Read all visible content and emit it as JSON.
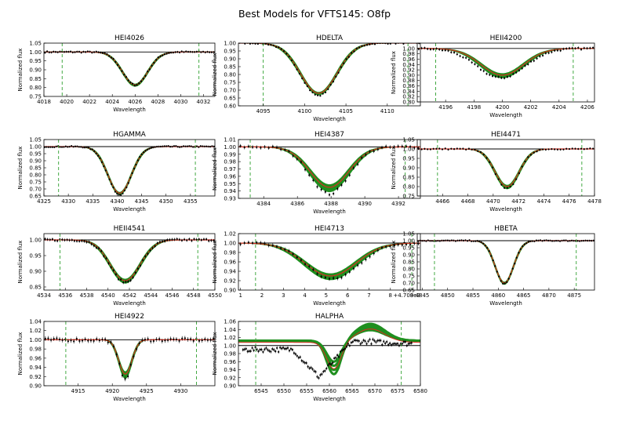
{
  "figure_title": "Best Models for VFTS145: O8fp",
  "colors": {
    "model_band": "#1f8f1f",
    "best_fit": "#d62d20",
    "data_points": "#000000",
    "continuum": "#000000",
    "window_marker": "#2fa02f"
  },
  "chart_data": [
    {
      "type": "line",
      "title": "HEI4026",
      "xlabel": "Wavelength",
      "ylabel": "Normalized flux",
      "xlim": [
        4018,
        4033
      ],
      "ylim": [
        0.75,
        1.05
      ],
      "xticks": [
        "4018",
        "4020",
        "4022",
        "4024",
        "4026",
        "4028",
        "4030",
        "4032"
      ],
      "yticks": [
        "0.75",
        "0.80",
        "0.85",
        "0.90",
        "0.95",
        "1.00",
        "1.05"
      ],
      "window": [
        4019.6,
        4031.6
      ],
      "line": {
        "center": 4026.0,
        "width": 1.1,
        "depth": 0.185,
        "band": 0.008
      },
      "data": {
        "center": 4026.0,
        "width": 1.1,
        "depth": 0.185,
        "npts": 80,
        "errbar": 0.006
      }
    },
    {
      "type": "line",
      "title": "HDELTA",
      "xlabel": "Wavelength",
      "ylabel": "Normalized flux",
      "xlim": [
        4092,
        4114
      ],
      "ylim": [
        0.6,
        1.0
      ],
      "xticks": [
        "4095",
        "4100",
        "4105",
        "4110"
      ],
      "yticks": [
        "0.60",
        "0.65",
        "0.70",
        "0.75",
        "0.80",
        "0.85",
        "0.90",
        "0.95",
        "1.00"
      ],
      "window": [
        4095.0,
        4112.5
      ],
      "line": {
        "center": 4101.7,
        "width": 2.2,
        "depth": 0.32,
        "band": 0.01
      },
      "data": {
        "center": 4101.7,
        "width": 2.2,
        "depth": 0.335,
        "npts": 70,
        "errbar": 0.006
      }
    },
    {
      "type": "line",
      "title": "HEII4200",
      "xlabel": "Wavelength",
      "ylabel": "Normalized flux",
      "xlim": [
        4194,
        4206.5
      ],
      "ylim": [
        0.8,
        1.02
      ],
      "xticks": [
        "4196",
        "4198",
        "4200",
        "4202",
        "4204",
        "4206"
      ],
      "yticks": [
        "0.80",
        "0.82",
        "0.84",
        "0.86",
        "0.88",
        "0.90",
        "0.92",
        "0.94",
        "0.96",
        "0.98",
        "1.00"
      ],
      "window": [
        4195.3,
        4205.0
      ],
      "line": {
        "center": 4200.0,
        "width": 1.5,
        "depth": 0.1,
        "band": 0.01
      },
      "data": {
        "center": 4199.9,
        "width": 1.7,
        "depth": 0.11,
        "npts": 60,
        "errbar": 0.005
      }
    },
    {
      "type": "line",
      "title": "HGAMMA",
      "xlabel": "Wavelength",
      "ylabel": "Normalized flux",
      "xlim": [
        4325,
        4360
      ],
      "ylim": [
        0.65,
        1.05
      ],
      "xticks": [
        "4325",
        "4330",
        "4335",
        "4340",
        "4345",
        "4350",
        "4355"
      ],
      "yticks": [
        "0.65",
        "0.70",
        "0.75",
        "0.80",
        "0.85",
        "0.90",
        "0.95",
        "1.00",
        "1.05"
      ],
      "window": [
        4328.0,
        4356.0
      ],
      "line": {
        "center": 4340.5,
        "width": 2.4,
        "depth": 0.33,
        "band": 0.01
      },
      "data": {
        "center": 4340.5,
        "width": 2.4,
        "depth": 0.34,
        "npts": 90,
        "errbar": 0.006
      }
    },
    {
      "type": "line",
      "title": "HEI4387",
      "xlabel": "Wavelength",
      "ylabel": "Normalized flux",
      "xlim": [
        4382.5,
        4393.3
      ],
      "ylim": [
        0.93,
        1.01
      ],
      "xticks": [
        "4384",
        "4386",
        "4388",
        "4390",
        "4392"
      ],
      "yticks": [
        "0.93",
        "0.94",
        "0.95",
        "0.96",
        "0.97",
        "0.98",
        "0.99",
        "1.00",
        "1.01"
      ],
      "window": [
        4383.2,
        4392.4
      ],
      "line": {
        "center": 4387.9,
        "width": 1.15,
        "depth": 0.055,
        "band": 0.006
      },
      "data": {
        "center": 4387.9,
        "width": 1.15,
        "depth": 0.064,
        "npts": 45,
        "errbar": 0.0025
      }
    },
    {
      "type": "line",
      "title": "HEI4471",
      "xlabel": "Wavelength",
      "ylabel": "Normalized flux",
      "xlim": [
        4464,
        4478
      ],
      "ylim": [
        0.75,
        1.05
      ],
      "xticks": [
        "4466",
        "4468",
        "4470",
        "4472",
        "4474",
        "4476",
        "4478"
      ],
      "yticks": [
        "0.75",
        "0.80",
        "0.85",
        "0.90",
        "0.95",
        "1.00",
        "1.05"
      ],
      "window": [
        4465.6,
        4477.0
      ],
      "line": {
        "center": 4471.1,
        "width": 0.95,
        "depth": 0.2,
        "band": 0.012
      },
      "data": {
        "center": 4471.1,
        "width": 0.95,
        "depth": 0.21,
        "npts": 60,
        "errbar": 0.005
      }
    },
    {
      "type": "line",
      "title": "HEII4541",
      "xlabel": "Wavelength",
      "ylabel": "Normalized flux",
      "xlim": [
        4534,
        4550
      ],
      "ylim": [
        0.84,
        1.02
      ],
      "xticks": [
        "4534",
        "4536",
        "4538",
        "4540",
        "4542",
        "4544",
        "4546",
        "4548",
        "4550"
      ],
      "yticks": [
        "0.85",
        "0.90",
        "0.95",
        "1.00"
      ],
      "window": [
        4535.5,
        4548.4
      ],
      "line": {
        "center": 4541.6,
        "width": 1.4,
        "depth": 0.13,
        "band": 0.008
      },
      "data": {
        "center": 4541.6,
        "width": 1.4,
        "depth": 0.135,
        "npts": 70,
        "errbar": 0.005
      }
    },
    {
      "type": "line",
      "title": "HEI4713",
      "xlabel": "Wavelength",
      "ylabel": "Normalized flux",
      "offset_label": "+4.708e3",
      "xlim": [
        0.9,
        9.4
      ],
      "ylim": [
        0.9,
        1.02
      ],
      "xticks": [
        "1",
        "2",
        "3",
        "4",
        "5",
        "6",
        "7",
        "8",
        "9"
      ],
      "yticks": [
        "0.90",
        "0.92",
        "0.94",
        "0.96",
        "0.98",
        "1.00",
        "1.02"
      ],
      "window": [
        1.7,
        9.0
      ],
      "line": {
        "center": 5.2,
        "width": 1.2,
        "depth": 0.07,
        "band": 0.008
      },
      "data": {
        "center": 5.3,
        "width": 1.2,
        "depth": 0.077,
        "npts": 45,
        "errbar": 0.004
      }
    },
    {
      "type": "line",
      "title": "HBETA",
      "xlabel": "Wavelength",
      "ylabel": "Normalized flux",
      "xlim": [
        4844,
        4879
      ],
      "ylim": [
        0.65,
        1.05
      ],
      "xticks": [
        "4845",
        "4850",
        "4855",
        "4860",
        "4865",
        "4870",
        "4875"
      ],
      "yticks": [
        "0.65",
        "0.70",
        "0.75",
        "0.80",
        "0.85",
        "0.90",
        "0.95",
        "1.00",
        "1.05"
      ],
      "window": [
        4847.4,
        4875.4
      ],
      "line": {
        "center": 4861.2,
        "width": 1.8,
        "depth": 0.3,
        "band": 0.01
      },
      "data": {
        "center": 4861.2,
        "width": 1.8,
        "depth": 0.305,
        "npts": 90,
        "errbar": 0.005
      }
    },
    {
      "type": "line",
      "title": "HEI4922",
      "xlabel": "Wavelength",
      "ylabel": "Normalized flux",
      "xlim": [
        4910,
        4935
      ],
      "ylim": [
        0.9,
        1.04
      ],
      "xticks": [
        "4915",
        "4920",
        "4925",
        "4930"
      ],
      "yticks": [
        "0.90",
        "0.92",
        "0.94",
        "0.96",
        "0.98",
        "1.00",
        "1.02",
        "1.04"
      ],
      "window": [
        4913.2,
        4932.3
      ],
      "line": {
        "center": 4921.9,
        "width": 0.95,
        "depth": 0.075,
        "band": 0.009
      },
      "data": {
        "center": 4921.9,
        "width": 0.95,
        "depth": 0.083,
        "npts": 60,
        "errbar": 0.005
      }
    },
    {
      "type": "line",
      "title": "HALPHA",
      "xlabel": "Wavelength",
      "ylabel": "Normalized flux",
      "xlim": [
        6540,
        6580
      ],
      "ylim": [
        0.9,
        1.06
      ],
      "xticks": [
        "6545",
        "6550",
        "6555",
        "6560",
        "6565",
        "6570",
        "6575",
        "6580"
      ],
      "yticks": [
        "0.90",
        "0.92",
        "0.94",
        "0.96",
        "0.98",
        "1.00",
        "1.02",
        "1.04",
        "1.06"
      ],
      "window": [
        6543.8,
        6575.8
      ],
      "halpha": true
    }
  ]
}
